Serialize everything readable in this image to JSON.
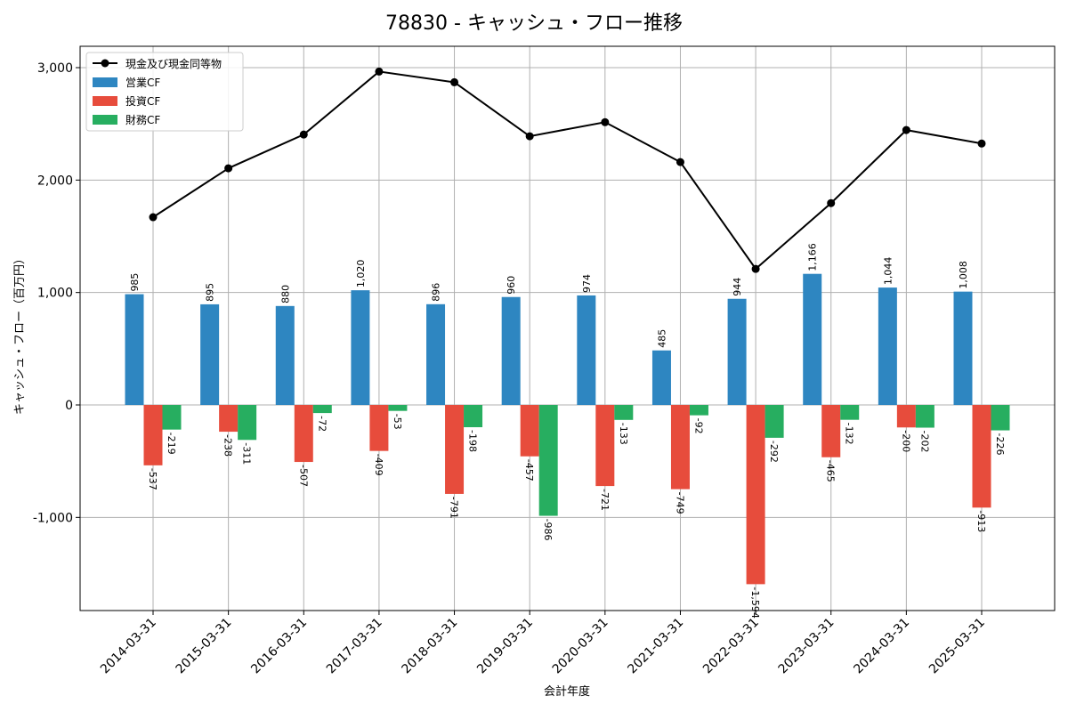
{
  "chart_data": {
    "type": "bar",
    "title": "78830 - キャッシュ・フロー推移",
    "xlabel": "会計年度",
    "ylabel": "キャッシュ・フロー（百万円）",
    "categories": [
      "2014-03-31",
      "2015-03-31",
      "2016-03-31",
      "2017-03-31",
      "2018-03-31",
      "2019-03-31",
      "2020-03-31",
      "2021-03-31",
      "2022-03-31",
      "2023-03-31",
      "2024-03-31",
      "2025-03-31"
    ],
    "ylim": [
      -1830,
      3000
    ],
    "yticks": [
      -1000,
      0,
      1000,
      2000,
      3000
    ],
    "ytick_labels": [
      "-1,000",
      "0",
      "1,000",
      "2,000",
      "3,000"
    ],
    "grid": true,
    "legend_position": "top-left",
    "series": [
      {
        "name": "営業CF",
        "kind": "bar",
        "color": "#2e86c1",
        "values": [
          985,
          895,
          880,
          1020,
          896,
          960,
          974,
          485,
          944,
          1166,
          1044,
          1008
        ],
        "labels": [
          "985",
          "895",
          "880",
          "1,020",
          "896",
          "960",
          "974",
          "485",
          "944",
          "1,166",
          "1,044",
          "1,008"
        ]
      },
      {
        "name": "投資CF",
        "kind": "bar",
        "color": "#e74c3c",
        "values": [
          -537,
          -238,
          -507,
          -409,
          -791,
          -457,
          -721,
          -749,
          -1594,
          -465,
          -200,
          -913
        ],
        "labels": [
          "-537",
          "-238",
          "-507",
          "-409",
          "-791",
          "-457",
          "-721",
          "-749",
          "-1,594",
          "-465",
          "-200",
          "-913"
        ]
      },
      {
        "name": "財務CF",
        "kind": "bar",
        "color": "#27ae60",
        "values": [
          -219,
          -311,
          -72,
          -53,
          -198,
          -986,
          -133,
          -92,
          -292,
          -132,
          -202,
          -226
        ],
        "labels": [
          "-219",
          "-311",
          "-72",
          "-53",
          "-198",
          "-986",
          "-133",
          "-92",
          "-292",
          "-132",
          "-202",
          "-226"
        ]
      },
      {
        "name": "現金及び現金同等物",
        "kind": "line",
        "color": "#000000",
        "values": [
          1670,
          2105,
          2405,
          2965,
          2870,
          2390,
          2515,
          2160,
          1210,
          1795,
          2445,
          2325
        ]
      }
    ]
  }
}
